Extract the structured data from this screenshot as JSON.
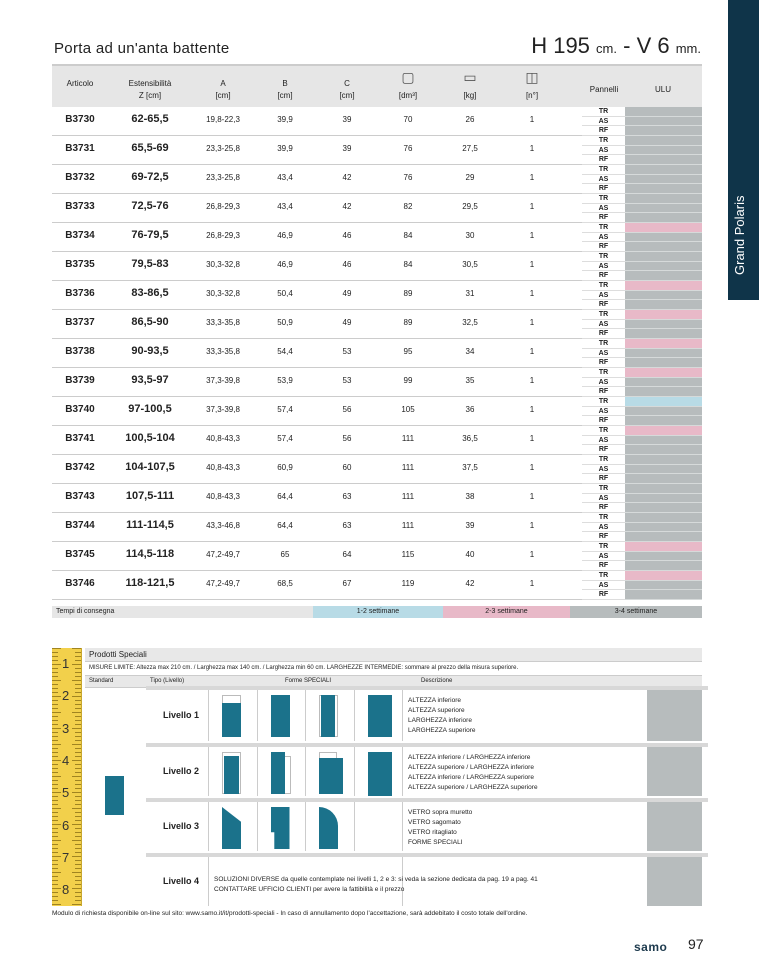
{
  "title": "Porta ad un'anta battente",
  "dimensions": {
    "h": "H 195",
    "h_unit": "cm.",
    "sep": " - ",
    "v": "V 6",
    "v_unit": "mm."
  },
  "side_tab": "Grand Polaris",
  "headers": {
    "articolo": "Articolo",
    "ext1": "Estensibilità",
    "ext2": "Z [cm]",
    "a1": "A",
    "a2": "[cm]",
    "b1": "B",
    "b2": "[cm]",
    "c1": "C",
    "c2": "[cm]",
    "vol": "[dm³]",
    "kg": "[kg]",
    "n": "[n°]",
    "pannelli": "Pannelli",
    "ulu": "ULU"
  },
  "panels": [
    "TR",
    "AS",
    "RF"
  ],
  "colors": {
    "grey": "#b7bcbd",
    "pink": "#e8b9c8",
    "blue": "#b8dbe6",
    "dark": "#0f3449",
    "teal": "#1b728b"
  },
  "rows": [
    {
      "art": "B3730",
      "ext": "62-65,5",
      "a": "19,8-22,3",
      "b": "39,9",
      "c": "39",
      "vol": "70",
      "kg": "26",
      "n": "1",
      "ulu": [
        "grey",
        "grey",
        "grey"
      ]
    },
    {
      "art": "B3731",
      "ext": "65,5-69",
      "a": "23,3-25,8",
      "b": "39,9",
      "c": "39",
      "vol": "76",
      "kg": "27,5",
      "n": "1",
      "ulu": [
        "grey",
        "grey",
        "grey"
      ]
    },
    {
      "art": "B3732",
      "ext": "69-72,5",
      "a": "23,3-25,8",
      "b": "43,4",
      "c": "42",
      "vol": "76",
      "kg": "29",
      "n": "1",
      "ulu": [
        "grey",
        "grey",
        "grey"
      ]
    },
    {
      "art": "B3733",
      "ext": "72,5-76",
      "a": "26,8-29,3",
      "b": "43,4",
      "c": "42",
      "vol": "82",
      "kg": "29,5",
      "n": "1",
      "ulu": [
        "grey",
        "grey",
        "grey"
      ]
    },
    {
      "art": "B3734",
      "ext": "76-79,5",
      "a": "26,8-29,3",
      "b": "46,9",
      "c": "46",
      "vol": "84",
      "kg": "30",
      "n": "1",
      "ulu": [
        "pink",
        "grey",
        "grey"
      ]
    },
    {
      "art": "B3735",
      "ext": "79,5-83",
      "a": "30,3-32,8",
      "b": "46,9",
      "c": "46",
      "vol": "84",
      "kg": "30,5",
      "n": "1",
      "ulu": [
        "grey",
        "grey",
        "grey"
      ]
    },
    {
      "art": "B3736",
      "ext": "83-86,5",
      "a": "30,3-32,8",
      "b": "50,4",
      "c": "49",
      "vol": "89",
      "kg": "31",
      "n": "1",
      "ulu": [
        "pink",
        "grey",
        "grey"
      ]
    },
    {
      "art": "B3737",
      "ext": "86,5-90",
      "a": "33,3-35,8",
      "b": "50,9",
      "c": "49",
      "vol": "89",
      "kg": "32,5",
      "n": "1",
      "ulu": [
        "pink",
        "grey",
        "grey"
      ]
    },
    {
      "art": "B3738",
      "ext": "90-93,5",
      "a": "33,3-35,8",
      "b": "54,4",
      "c": "53",
      "vol": "95",
      "kg": "34",
      "n": "1",
      "ulu": [
        "pink",
        "grey",
        "grey"
      ]
    },
    {
      "art": "B3739",
      "ext": "93,5-97",
      "a": "37,3-39,8",
      "b": "53,9",
      "c": "53",
      "vol": "99",
      "kg": "35",
      "n": "1",
      "ulu": [
        "pink",
        "grey",
        "grey"
      ]
    },
    {
      "art": "B3740",
      "ext": "97-100,5",
      "a": "37,3-39,8",
      "b": "57,4",
      "c": "56",
      "vol": "105",
      "kg": "36",
      "n": "1",
      "ulu": [
        "blue",
        "grey",
        "grey"
      ]
    },
    {
      "art": "B3741",
      "ext": "100,5-104",
      "a": "40,8-43,3",
      "b": "57,4",
      "c": "56",
      "vol": "111",
      "kg": "36,5",
      "n": "1",
      "ulu": [
        "pink",
        "grey",
        "grey"
      ]
    },
    {
      "art": "B3742",
      "ext": "104-107,5",
      "a": "40,8-43,3",
      "b": "60,9",
      "c": "60",
      "vol": "111",
      "kg": "37,5",
      "n": "1",
      "ulu": [
        "grey",
        "grey",
        "grey"
      ]
    },
    {
      "art": "B3743",
      "ext": "107,5-111",
      "a": "40,8-43,3",
      "b": "64,4",
      "c": "63",
      "vol": "111",
      "kg": "38",
      "n": "1",
      "ulu": [
        "grey",
        "grey",
        "grey"
      ]
    },
    {
      "art": "B3744",
      "ext": "111-114,5",
      "a": "43,3-46,8",
      "b": "64,4",
      "c": "63",
      "vol": "111",
      "kg": "39",
      "n": "1",
      "ulu": [
        "grey",
        "grey",
        "grey"
      ]
    },
    {
      "art": "B3745",
      "ext": "114,5-118",
      "a": "47,2-49,7",
      "b": "65",
      "c": "64",
      "vol": "115",
      "kg": "40",
      "n": "1",
      "ulu": [
        "pink",
        "grey",
        "grey"
      ]
    },
    {
      "art": "B3746",
      "ext": "118-121,5",
      "a": "47,2-49,7",
      "b": "68,5",
      "c": "67",
      "vol": "119",
      "kg": "42",
      "n": "1",
      "ulu": [
        "pink",
        "grey",
        "grey"
      ]
    }
  ],
  "delivery": {
    "label": "Tempi di consegna",
    "t1": "1-2 settimane",
    "t2": "2-3 settimane",
    "t3": "3-4 settimane"
  },
  "special": {
    "title": "Prodotti Speciali",
    "limits": "MISURE LIMITE: Altezza max 210 cm. / Larghezza max 140 cm. / Larghezza min 60 cm.      LARGHEZZE INTERMEDIE: sommare al prezzo della misura superiore.",
    "col_standard": "Standard",
    "col_tipo": "Tipo (Livello)",
    "col_forme": "Forme SPECIALI",
    "col_desc": "Descrizione",
    "levels": [
      {
        "name": "Livello 1",
        "desc": [
          "ALTEZZA inferiore",
          "ALTEZZA superiore",
          "LARGHEZZA inferiore",
          "LARGHEZZA superiore"
        ]
      },
      {
        "name": "Livello 2",
        "desc": [
          "ALTEZZA inferiore / LARGHEZZA inferiore",
          "ALTEZZA superiore / LARGHEZZA inferiore",
          "ALTEZZA inferiore / LARGHEZZA superiore",
          "ALTEZZA superiore / LARGHEZZA superiore"
        ]
      },
      {
        "name": "Livello 3",
        "desc": [
          "VETRO sopra muretto",
          "VETRO sagomato",
          "VETRO ritagliato",
          "FORME SPECIALI"
        ]
      },
      {
        "name": "Livello 4",
        "desc": [
          "SOLUZIONI DIVERSE da quelle contemplate nei livelli 1, 2 e 3: si veda la sezione dedicata da pag. 19 a pag. 41",
          "CONTATTARE UFFICIO CLIENTI per avere la fattibilità e il prezzo"
        ]
      }
    ],
    "ruler": [
      "1",
      "2",
      "3",
      "4",
      "5",
      "6",
      "7",
      "8"
    ]
  },
  "footnote": "Modulo di richiesta disponibile on-line sul sito: www.samo.it/it/prodotti-speciali - In caso di annullamento dopo l'accettazione, sarà addebitato il costo totale dell'ordine.",
  "brand": "samo",
  "page_number": "97"
}
